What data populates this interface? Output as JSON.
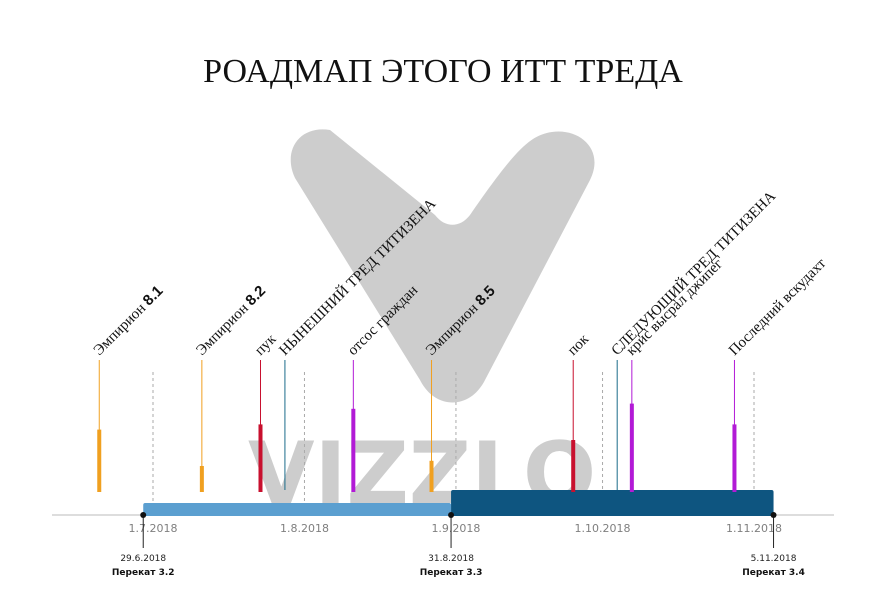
{
  "chart_data": {
    "type": "timeline",
    "title": "РОАДМАП ЭТОГО ИТТ ТРЕДА",
    "x_axis": {
      "ticks": [
        "1.7.2018",
        "1.8.2018",
        "1.9.2018",
        "1.10.2018",
        "1.11.2018"
      ]
    },
    "phases": [
      {
        "start": "29.6.2018",
        "end": "31.8.2018",
        "color": "#5b9fd0"
      },
      {
        "start": "31.8.2018",
        "end": "5.11.2018",
        "color": "#0e5580"
      }
    ],
    "milestones": [
      {
        "date": "29.6.2018",
        "name": "Перекат 3.2"
      },
      {
        "date": "31.8.2018",
        "name": "Перекат 3.3"
      },
      {
        "date": "5.11.2018",
        "name": "Перекат 3.4"
      }
    ],
    "events": [
      {
        "date": "20.6.2018",
        "label": "Эмпирион ",
        "label_bold": "8.1",
        "color": "#f0a020",
        "stem": 0.6
      },
      {
        "date": "11.7.2018",
        "label": "Эмпирион ",
        "label_bold": "8.2",
        "color": "#f0a020",
        "stem": 0.25
      },
      {
        "date": "23.7.2018",
        "label": "пук",
        "label_bold": "",
        "color": "#c8102e",
        "stem": 0.65
      },
      {
        "date": "28.7.2018",
        "label": "НЫНЕШНИЙ ТРЕД ТИТИЗЕНА",
        "label_bold": "",
        "color": "#1a6b8a",
        "stem": 0.0
      },
      {
        "date": "11.8.2018",
        "label": "отсос граждан",
        "label_bold": "",
        "color": "#b21ad6",
        "stem": 0.8
      },
      {
        "date": "27.8.2018",
        "label": "Эмпирион ",
        "label_bold": "8.5",
        "color": "#f0a020",
        "stem": 0.3
      },
      {
        "date": "25.9.2018",
        "label": "пок",
        "label_bold": "",
        "color": "#c8102e",
        "stem": 0.5
      },
      {
        "date": "4.10.2018",
        "label": "СЛЕДУЮЩИЙ ТРЕД ТИТИЗЕНА",
        "label_bold": "",
        "color": "#1a6b8a",
        "stem": 0.0
      },
      {
        "date": "7.10.2018",
        "label": "крис высрал джипег",
        "label_bold": "",
        "color": "#b21ad6",
        "stem": 0.85
      },
      {
        "date": "28.10.2018",
        "label": "Последний вскудахт",
        "label_bold": "",
        "color": "#b21ad6",
        "stem": 0.65
      }
    ]
  },
  "watermark": {
    "text": "VIZZLO"
  }
}
